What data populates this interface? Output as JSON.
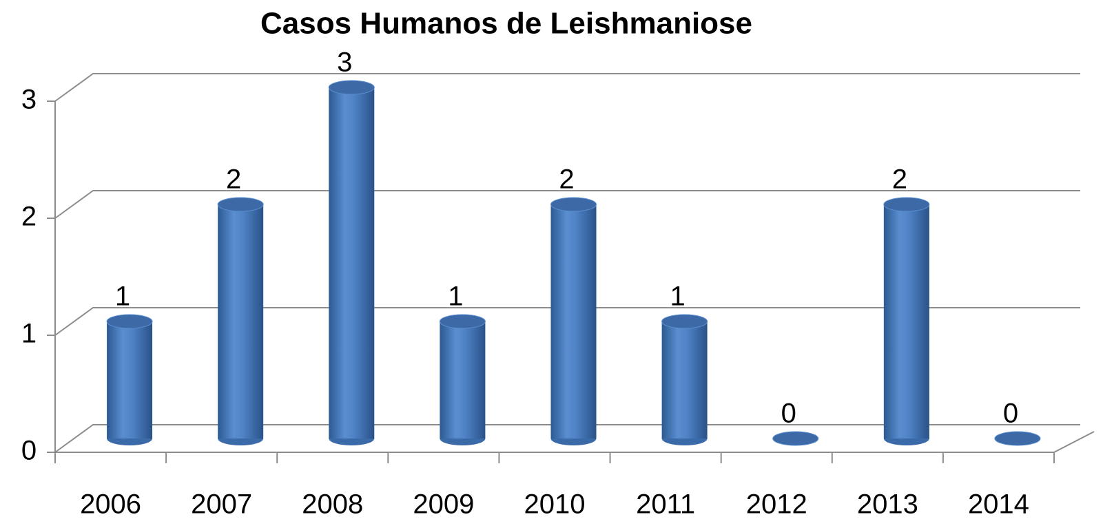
{
  "chart_data": {
    "type": "bar",
    "title": "Casos Humanos de Leishmaniose",
    "categories": [
      "2006",
      "2007",
      "2008",
      "2009",
      "2010",
      "2011",
      "2012",
      "2013",
      "2014"
    ],
    "values": [
      1,
      2,
      3,
      1,
      2,
      1,
      0,
      2,
      0
    ],
    "color": "#4f81bd",
    "ylim": [
      0,
      3
    ],
    "yticks": [
      0,
      1,
      2,
      3
    ],
    "grid": true
  }
}
